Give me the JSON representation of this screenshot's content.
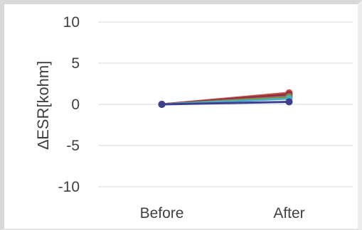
{
  "chart_data": {
    "type": "line",
    "categories": [
      "Before",
      "After"
    ],
    "ylabel": "∆ESR[kohm]",
    "ylim": [
      -10,
      10
    ],
    "yticks": [
      10,
      5,
      0,
      -5,
      -10
    ],
    "grid": true,
    "legend": "none",
    "series": [
      {
        "values": [
          0,
          1.4
        ],
        "color": "#c0504d"
      },
      {
        "values": [
          0,
          1.2
        ],
        "color": "#9b2d2d"
      },
      {
        "values": [
          0,
          1.0
        ],
        "color": "#7f3f98"
      },
      {
        "values": [
          0,
          0.9
        ],
        "color": "#8c8c2a"
      },
      {
        "values": [
          0,
          0.7
        ],
        "color": "#4bacc6"
      },
      {
        "values": [
          0,
          0.3
        ],
        "color": "#3f3f8f"
      }
    ]
  }
}
